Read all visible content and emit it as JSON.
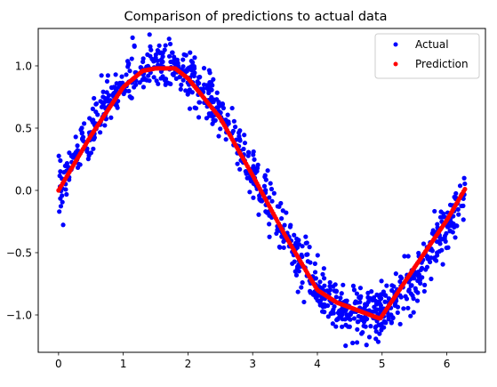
{
  "chart_data": {
    "type": "scatter",
    "title": "Comparison of predictions to actual data",
    "xlabel": "",
    "ylabel": "",
    "xlim": [
      -0.3142,
      6.5973
    ],
    "ylim": [
      -1.3,
      1.3
    ],
    "x_ticks": [
      0,
      1,
      2,
      3,
      4,
      5,
      6
    ],
    "y_ticks": [
      -1.0,
      -0.5,
      0.0,
      0.5,
      1.0
    ],
    "x_tick_labels": [
      "0",
      "1",
      "2",
      "3",
      "4",
      "5",
      "6"
    ],
    "y_tick_labels": [
      "−1.0",
      "−0.5",
      "0.0",
      "0.5",
      "1.0"
    ],
    "grid": false,
    "legend_position": "top-right",
    "series": [
      {
        "name": "Actual",
        "color": "#0000ff",
        "marker": "dot",
        "noise": 0.1,
        "n": 1000,
        "x_range": [
          0,
          6.2832
        ],
        "relation": "y = sin(x) + noise"
      },
      {
        "name": "Prediction",
        "color": "#ff0000",
        "marker": "dot",
        "n": 300,
        "knots": [
          [
            0.0,
            0.0
          ],
          [
            0.5,
            0.44
          ],
          [
            1.0,
            0.83
          ],
          [
            1.3,
            0.96
          ],
          [
            1.5,
            0.98
          ],
          [
            1.8,
            0.98
          ],
          [
            2.0,
            0.9
          ],
          [
            2.5,
            0.58
          ],
          [
            3.0,
            0.12
          ],
          [
            3.5,
            -0.36
          ],
          [
            4.0,
            -0.8
          ],
          [
            4.3,
            -0.9
          ],
          [
            4.97,
            -1.03
          ],
          [
            5.5,
            -0.62
          ],
          [
            6.0,
            -0.24
          ],
          [
            6.28,
            0.01
          ]
        ]
      }
    ]
  }
}
